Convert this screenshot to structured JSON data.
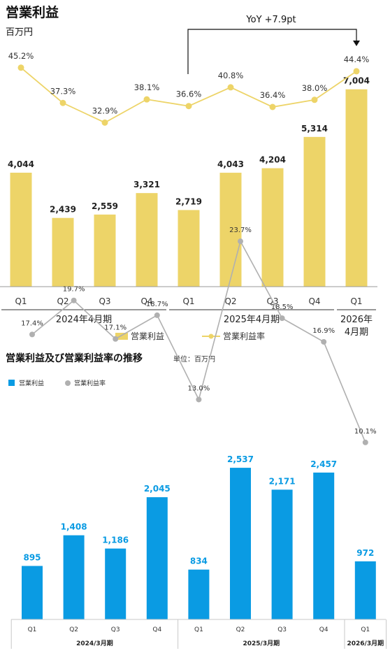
{
  "chart_data": [
    {
      "type": "bar",
      "title": "営業利益",
      "unit": "百万円",
      "categories": [
        "Q1",
        "Q2",
        "Q3",
        "Q4",
        "Q1",
        "Q2",
        "Q3",
        "Q4",
        "Q1"
      ],
      "groups": [
        {
          "label": "2024年4月期",
          "start": 0,
          "end": 3
        },
        {
          "label": "2025年4月期",
          "start": 4,
          "end": 7
        },
        {
          "label": "2026年\n4月期",
          "start": 8,
          "end": 8
        }
      ],
      "series": [
        {
          "name": "営業利益",
          "type": "bar",
          "color": "#EDD468",
          "values": [
            4044,
            2439,
            2559,
            3321,
            2719,
            4043,
            4204,
            5314,
            7004
          ],
          "labels": [
            "4,044",
            "2,439",
            "2,559",
            "3,321",
            "2,719",
            "4,043",
            "4,204",
            "5,314",
            "7,004"
          ]
        },
        {
          "name": "営業利益率",
          "type": "line",
          "color": "#EDD468",
          "values": [
            45.2,
            37.3,
            32.9,
            38.1,
            36.6,
            40.8,
            36.4,
            38.0,
            44.4
          ],
          "labels": [
            "45.2%",
            "37.3%",
            "32.9%",
            "38.1%",
            "36.6%",
            "40.8%",
            "36.4%",
            "38.0%",
            "44.4%"
          ]
        }
      ],
      "annotation": {
        "text": "YoY +7.9pt",
        "from_index": 4,
        "to_index": 8
      },
      "legend_position": "bottom",
      "grid": false
    },
    {
      "type": "bar",
      "title": "営業利益及び営業利益率の推移",
      "unit": "単位：百万円",
      "categories": [
        "Q1",
        "Q2",
        "Q3",
        "Q4",
        "Q1",
        "Q2",
        "Q3",
        "Q4",
        "Q1"
      ],
      "groups": [
        {
          "label": "2024/3月期",
          "start": 0,
          "end": 3
        },
        {
          "label": "2025/3月期",
          "start": 4,
          "end": 7
        },
        {
          "label": "2026/3月期",
          "start": 8,
          "end": 8
        }
      ],
      "series": [
        {
          "name": "営業利益",
          "type": "bar",
          "color": "#0A9BE3",
          "values": [
            895,
            1408,
            1186,
            2045,
            834,
            2537,
            2171,
            2457,
            972
          ],
          "labels": [
            "895",
            "1,408",
            "1,186",
            "2,045",
            "834",
            "2,537",
            "2,171",
            "2,457",
            "972"
          ]
        },
        {
          "name": "営業利益率",
          "type": "line",
          "color": "#B0B0B0",
          "values": [
            17.4,
            19.7,
            17.1,
            18.7,
            13.0,
            23.7,
            18.5,
            16.9,
            10.1
          ],
          "labels": [
            "17.4%",
            "19.7%",
            "17.1%",
            "18.7%",
            "13.0%",
            "23.7%",
            "18.5%",
            "16.9%",
            "10.1%"
          ]
        }
      ],
      "legend_position": "top-left",
      "grid": false
    }
  ]
}
